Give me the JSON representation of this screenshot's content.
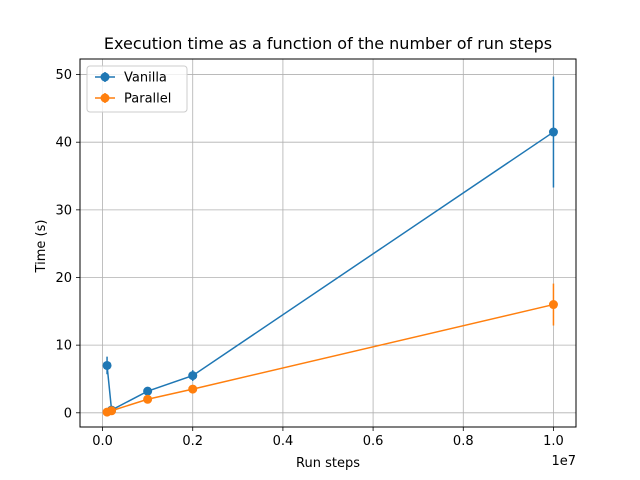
{
  "chart_data": {
    "type": "line",
    "title": "Execution time as a function of the number of run steps",
    "xlabel": "Run steps",
    "ylabel": "Time (s)",
    "x_offset_label": "1e7",
    "xlim": [
      -0.05,
      1.05
    ],
    "ylim": [
      -2.1,
      52.3
    ],
    "x_scale_note": "x values in units of 1e7",
    "xticks": [
      0.0,
      0.2,
      0.4,
      0.6,
      0.8,
      1.0
    ],
    "xtick_labels": [
      "0.0",
      "0.2",
      "0.4",
      "0.6",
      "0.8",
      "1.0"
    ],
    "yticks": [
      0,
      10,
      20,
      30,
      40,
      50
    ],
    "ytick_labels": [
      "0",
      "10",
      "20",
      "30",
      "40",
      "50"
    ],
    "grid": true,
    "legend_position": "top-left",
    "series": [
      {
        "name": "Vanilla",
        "color": "#1f77b4",
        "x": [
          0.01,
          0.02,
          0.1,
          0.2,
          1.0
        ],
        "y": [
          7.0,
          0.4,
          3.2,
          5.5,
          41.5
        ],
        "yerr": [
          1.3,
          0.3,
          0.5,
          0.8,
          8.2
        ]
      },
      {
        "name": "Parallel",
        "color": "#ff7f0e",
        "x": [
          0.01,
          0.02,
          0.1,
          0.2,
          1.0
        ],
        "y": [
          0.1,
          0.3,
          2.0,
          3.5,
          16.0
        ],
        "yerr": [
          0.1,
          0.1,
          0.2,
          0.3,
          3.1
        ]
      }
    ]
  }
}
